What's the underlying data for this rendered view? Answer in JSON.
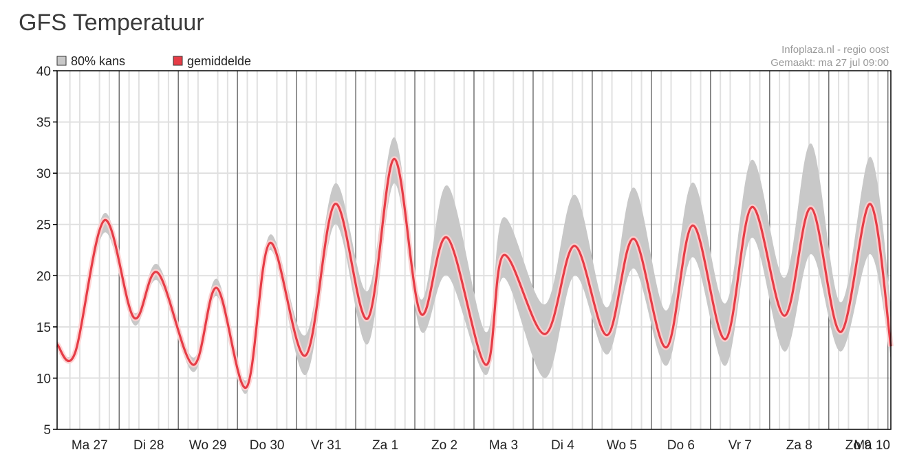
{
  "page": {
    "title": "GFS Temperatuur"
  },
  "colors": {
    "band": "#c8c8c8",
    "mean": "#e63c46",
    "mean_halo": "#ffd0d0",
    "grid": "#e0e0e0",
    "day_line": "#707070"
  },
  "chart_data": {
    "type": "area",
    "title": "GFS Temperatuur",
    "source": "Infoplaza.nl - regio oost",
    "created": "Gemaakt: ma 27 jul 09:00",
    "ylim": [
      5,
      40
    ],
    "yticks": [
      5,
      10,
      15,
      20,
      25,
      30,
      35,
      40
    ],
    "grid": true,
    "legend_position": "top-left",
    "legend": [
      {
        "label": "80% kans",
        "color": "#c8c8c8"
      },
      {
        "label": "gemiddelde",
        "color": "#e63c46"
      }
    ],
    "x_unit": "days from start (start = ma 27 jul 00:00)",
    "xlim": [
      -0.05,
      14.05
    ],
    "day_labels": [
      "Ma 27",
      "Di 28",
      "Wo 29",
      "Do 30",
      "Vr 31",
      "Za 1",
      "Zo 2",
      "Ma 3",
      "Di 4",
      "Wo 5",
      "Do 6",
      "Vr 7",
      "Za 8",
      "Zo 9",
      "Ma 10"
    ],
    "series": [
      {
        "name": "gemiddelde",
        "x": [
          -0.05,
          0.25,
          0.75,
          1.25,
          1.65,
          2.25,
          2.65,
          3.15,
          3.55,
          4.15,
          4.65,
          5.2,
          5.65,
          6.1,
          6.55,
          7.2,
          7.5,
          8.2,
          8.7,
          9.25,
          9.7,
          10.25,
          10.7,
          11.25,
          11.7,
          12.25,
          12.7,
          13.2,
          13.7,
          14.05
        ],
        "values": [
          13.3,
          12.4,
          25.4,
          15.9,
          20.3,
          11.3,
          18.8,
          9.1,
          23.2,
          12.2,
          27.0,
          15.8,
          31.4,
          16.3,
          23.7,
          11.3,
          22.0,
          14.3,
          22.9,
          14.2,
          23.6,
          13.0,
          24.9,
          13.8,
          26.7,
          16.1,
          26.6,
          14.5,
          27.0,
          13.1
        ]
      },
      {
        "name": "80% kans",
        "x": [
          -0.05,
          0.25,
          0.75,
          1.25,
          1.65,
          2.25,
          2.65,
          3.15,
          3.55,
          4.15,
          4.65,
          5.2,
          5.65,
          6.1,
          6.55,
          7.2,
          7.5,
          8.2,
          8.7,
          9.25,
          9.7,
          10.25,
          10.7,
          11.25,
          11.7,
          12.25,
          12.7,
          13.2,
          13.7,
          14.05
        ],
        "lower": [
          13.0,
          12.1,
          24.2,
          15.2,
          19.5,
          10.6,
          18.0,
          8.5,
          22.5,
          10.3,
          25.0,
          13.3,
          29.0,
          14.6,
          20.0,
          10.3,
          19.8,
          10.0,
          20.0,
          12.3,
          20.7,
          11.2,
          21.8,
          11.2,
          23.7,
          12.6,
          22.1,
          12.6,
          22.1,
          11.8
        ],
        "upper": [
          13.6,
          12.8,
          26.1,
          16.4,
          21.1,
          12.0,
          19.7,
          9.8,
          24.0,
          14.2,
          29.0,
          18.5,
          33.5,
          17.7,
          28.8,
          14.5,
          25.7,
          17.2,
          27.9,
          16.9,
          28.6,
          16.6,
          29.1,
          17.3,
          31.3,
          19.8,
          32.9,
          17.4,
          31.6,
          17.2
        ]
      }
    ]
  }
}
